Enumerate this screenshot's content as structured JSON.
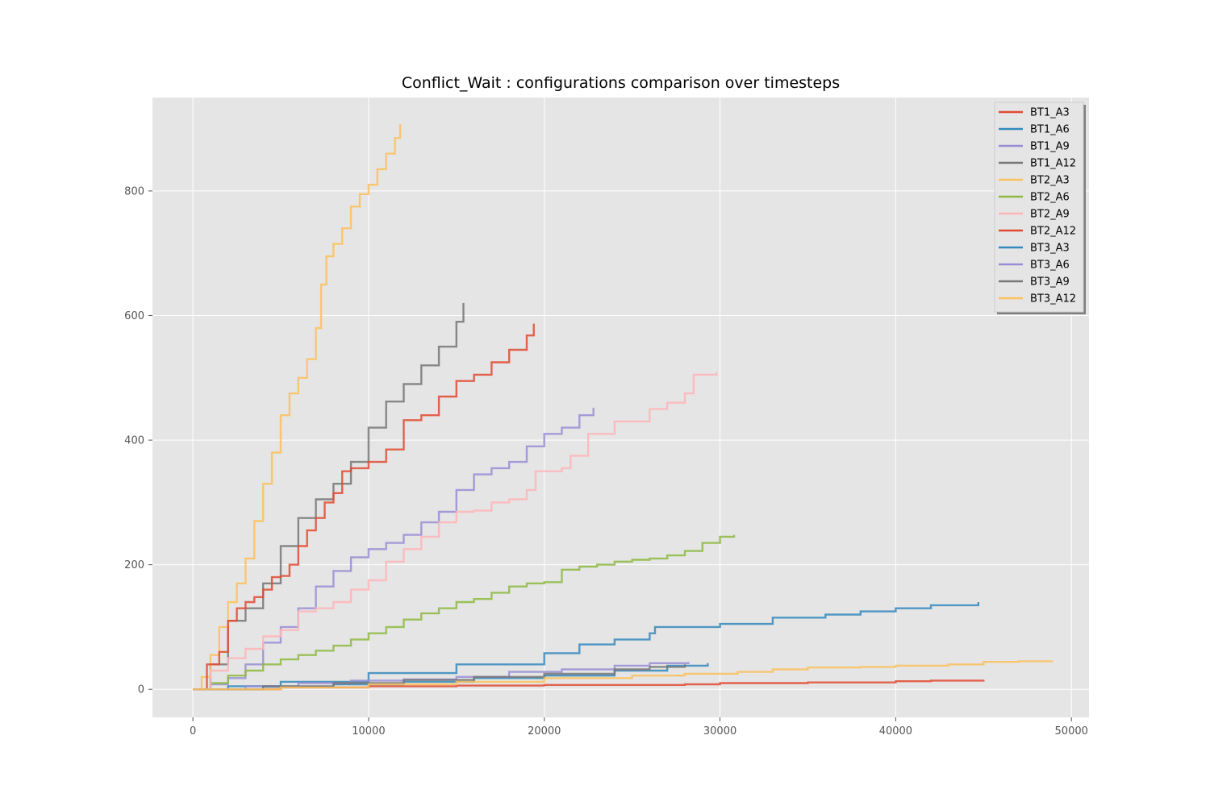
{
  "chart_data": {
    "type": "line",
    "title": "Conflict_Wait : configurations comparison over timesteps",
    "xlabel": "",
    "ylabel": "",
    "xlim": [
      -2300,
      51000
    ],
    "ylim": [
      -45,
      950
    ],
    "xticks": [
      0,
      10000,
      20000,
      30000,
      40000,
      50000
    ],
    "yticks": [
      0,
      200,
      400,
      600,
      800
    ],
    "grid": true,
    "legend_position": "top-right",
    "series": [
      {
        "name": "BT1_A3",
        "color": "#E24A33",
        "points": [
          [
            0,
            0
          ],
          [
            5000,
            3
          ],
          [
            10000,
            5
          ],
          [
            15000,
            6
          ],
          [
            20000,
            7
          ],
          [
            25000,
            7
          ],
          [
            28000,
            8
          ],
          [
            30000,
            10
          ],
          [
            35000,
            11
          ],
          [
            40000,
            13
          ],
          [
            42000,
            14
          ],
          [
            45000,
            15
          ]
        ]
      },
      {
        "name": "BT1_A6",
        "color": "#348ABD",
        "points": [
          [
            0,
            0
          ],
          [
            2000,
            5
          ],
          [
            5000,
            12
          ],
          [
            10000,
            26
          ],
          [
            15000,
            40
          ],
          [
            20000,
            58
          ],
          [
            22000,
            72
          ],
          [
            24000,
            80
          ],
          [
            26000,
            90
          ],
          [
            26300,
            100
          ],
          [
            30000,
            105
          ],
          [
            33000,
            115
          ],
          [
            36000,
            120
          ],
          [
            38000,
            125
          ],
          [
            40000,
            130
          ],
          [
            42000,
            135
          ],
          [
            44700,
            140
          ]
        ]
      },
      {
        "name": "BT1_A9",
        "color": "#988ED5",
        "points": [
          [
            0,
            0
          ],
          [
            1000,
            8
          ],
          [
            2000,
            18
          ],
          [
            3000,
            40
          ],
          [
            4000,
            75
          ],
          [
            5000,
            100
          ],
          [
            6000,
            130
          ],
          [
            7000,
            165
          ],
          [
            8000,
            190
          ],
          [
            9000,
            212
          ],
          [
            10000,
            225
          ],
          [
            11000,
            235
          ],
          [
            12000,
            248
          ],
          [
            13000,
            268
          ],
          [
            14000,
            285
          ],
          [
            15000,
            320
          ],
          [
            16000,
            345
          ],
          [
            17000,
            355
          ],
          [
            18000,
            365
          ],
          [
            19000,
            390
          ],
          [
            20000,
            410
          ],
          [
            21000,
            420
          ],
          [
            22000,
            440
          ],
          [
            22800,
            452
          ]
        ]
      },
      {
        "name": "BT1_A12",
        "color": "#777777",
        "points": [
          [
            0,
            0
          ],
          [
            1000,
            40
          ],
          [
            2000,
            110
          ],
          [
            3000,
            130
          ],
          [
            4000,
            170
          ],
          [
            5000,
            230
          ],
          [
            6000,
            275
          ],
          [
            7000,
            305
          ],
          [
            8000,
            330
          ],
          [
            9000,
            365
          ],
          [
            10000,
            420
          ],
          [
            11000,
            462
          ],
          [
            12000,
            490
          ],
          [
            13000,
            520
          ],
          [
            14000,
            550
          ],
          [
            15000,
            590
          ],
          [
            15400,
            620
          ]
        ]
      },
      {
        "name": "BT2_A3",
        "color": "#FBC15E",
        "points": [
          [
            0,
            0
          ],
          [
            500,
            20
          ],
          [
            1000,
            55
          ],
          [
            1500,
            100
          ],
          [
            2000,
            140
          ],
          [
            2500,
            170
          ],
          [
            3000,
            210
          ],
          [
            3500,
            270
          ],
          [
            4000,
            330
          ],
          [
            4500,
            380
          ],
          [
            5000,
            440
          ],
          [
            5500,
            475
          ],
          [
            6000,
            500
          ],
          [
            6500,
            530
          ],
          [
            7000,
            580
          ],
          [
            7300,
            650
          ],
          [
            7600,
            695
          ],
          [
            8000,
            715
          ],
          [
            8500,
            740
          ],
          [
            9000,
            775
          ],
          [
            9500,
            795
          ],
          [
            10000,
            810
          ],
          [
            10500,
            835
          ],
          [
            11000,
            860
          ],
          [
            11500,
            885
          ],
          [
            11800,
            907
          ]
        ]
      },
      {
        "name": "BT2_A6",
        "color": "#8EBA42",
        "points": [
          [
            0,
            0
          ],
          [
            1000,
            10
          ],
          [
            2000,
            22
          ],
          [
            3000,
            30
          ],
          [
            4000,
            40
          ],
          [
            5000,
            48
          ],
          [
            6000,
            55
          ],
          [
            7000,
            62
          ],
          [
            8000,
            70
          ],
          [
            9000,
            80
          ],
          [
            10000,
            90
          ],
          [
            11000,
            100
          ],
          [
            12000,
            112
          ],
          [
            13000,
            122
          ],
          [
            14000,
            130
          ],
          [
            15000,
            140
          ],
          [
            16000,
            145
          ],
          [
            17000,
            155
          ],
          [
            18000,
            165
          ],
          [
            19000,
            170
          ],
          [
            20000,
            172
          ],
          [
            21000,
            192
          ],
          [
            22000,
            197
          ],
          [
            23000,
            200
          ],
          [
            24000,
            205
          ],
          [
            25000,
            208
          ],
          [
            26000,
            210
          ],
          [
            27000,
            215
          ],
          [
            28000,
            222
          ],
          [
            29000,
            235
          ],
          [
            30000,
            245
          ],
          [
            30800,
            248
          ]
        ]
      },
      {
        "name": "BT2_A9",
        "color": "#FFB5B8",
        "points": [
          [
            0,
            0
          ],
          [
            1000,
            30
          ],
          [
            2000,
            50
          ],
          [
            3000,
            65
          ],
          [
            4000,
            85
          ],
          [
            5000,
            95
          ],
          [
            6000,
            125
          ],
          [
            7000,
            130
          ],
          [
            8000,
            140
          ],
          [
            9000,
            160
          ],
          [
            10000,
            175
          ],
          [
            11000,
            205
          ],
          [
            12000,
            225
          ],
          [
            13000,
            245
          ],
          [
            14000,
            268
          ],
          [
            15000,
            285
          ],
          [
            16000,
            287
          ],
          [
            17000,
            300
          ],
          [
            18000,
            305
          ],
          [
            19000,
            320
          ],
          [
            19500,
            350
          ],
          [
            21000,
            355
          ],
          [
            21500,
            375
          ],
          [
            22500,
            410
          ],
          [
            24000,
            430
          ],
          [
            26000,
            450
          ],
          [
            27000,
            460
          ],
          [
            28000,
            475
          ],
          [
            28500,
            505
          ],
          [
            29800,
            509
          ]
        ]
      },
      {
        "name": "BT2_A12",
        "color": "#E24A33",
        "points": [
          [
            0,
            0
          ],
          [
            800,
            40
          ],
          [
            1500,
            60
          ],
          [
            2000,
            110
          ],
          [
            2500,
            130
          ],
          [
            3000,
            140
          ],
          [
            3500,
            148
          ],
          [
            4000,
            160
          ],
          [
            4500,
            180
          ],
          [
            5000,
            182
          ],
          [
            5500,
            200
          ],
          [
            6000,
            230
          ],
          [
            6500,
            255
          ],
          [
            7000,
            275
          ],
          [
            7500,
            300
          ],
          [
            8000,
            315
          ],
          [
            8500,
            350
          ],
          [
            9000,
            355
          ],
          [
            10000,
            365
          ],
          [
            11000,
            385
          ],
          [
            12000,
            432
          ],
          [
            13000,
            440
          ],
          [
            14000,
            470
          ],
          [
            15000,
            495
          ],
          [
            16000,
            505
          ],
          [
            17000,
            525
          ],
          [
            18000,
            545
          ],
          [
            19000,
            568
          ],
          [
            19400,
            587
          ]
        ]
      },
      {
        "name": "BT3_A3",
        "color": "#348ABD",
        "points": [
          [
            0,
            0
          ],
          [
            4000,
            4
          ],
          [
            8000,
            8
          ],
          [
            12000,
            12
          ],
          [
            16000,
            18
          ],
          [
            20000,
            22
          ],
          [
            24000,
            30
          ],
          [
            27000,
            38
          ],
          [
            29300,
            42
          ]
        ]
      },
      {
        "name": "BT3_A6",
        "color": "#988ED5",
        "points": [
          [
            0,
            0
          ],
          [
            3000,
            5
          ],
          [
            6000,
            10
          ],
          [
            9000,
            14
          ],
          [
            12000,
            16
          ],
          [
            15000,
            20
          ],
          [
            18000,
            28
          ],
          [
            21000,
            32
          ],
          [
            24000,
            38
          ],
          [
            26000,
            42
          ],
          [
            28200,
            44
          ]
        ]
      },
      {
        "name": "BT3_A9",
        "color": "#777777",
        "points": [
          [
            0,
            0
          ],
          [
            4000,
            5
          ],
          [
            8000,
            10
          ],
          [
            12000,
            15
          ],
          [
            16000,
            20
          ],
          [
            20000,
            25
          ],
          [
            24000,
            32
          ],
          [
            26000,
            36
          ],
          [
            28000,
            40
          ]
        ]
      },
      {
        "name": "BT3_A12",
        "color": "#FBC15E",
        "points": [
          [
            0,
            0
          ],
          [
            5000,
            3
          ],
          [
            10000,
            8
          ],
          [
            15000,
            12
          ],
          [
            20000,
            18
          ],
          [
            25000,
            22
          ],
          [
            28000,
            25
          ],
          [
            31000,
            28
          ],
          [
            33000,
            32
          ],
          [
            35000,
            35
          ],
          [
            38000,
            36
          ],
          [
            40000,
            38
          ],
          [
            43000,
            40
          ],
          [
            45000,
            44
          ],
          [
            47000,
            45
          ],
          [
            48900,
            46
          ]
        ]
      }
    ]
  }
}
